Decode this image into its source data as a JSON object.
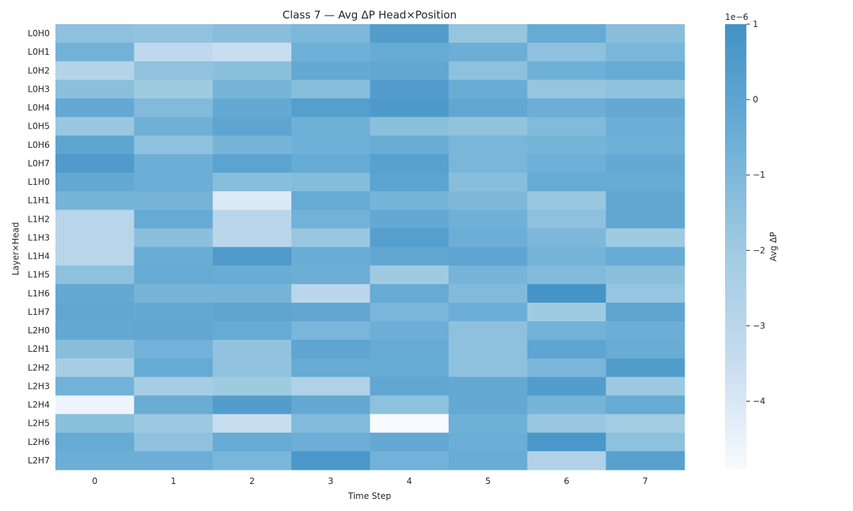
{
  "chart_data": {
    "type": "heatmap",
    "title": "Class 7 — Avg ΔP Head×Position",
    "xlabel": "Time Step",
    "ylabel": "Layer×Head",
    "x_categories": [
      "0",
      "1",
      "2",
      "3",
      "4",
      "5",
      "6",
      "7"
    ],
    "y_categories": [
      "L0H0",
      "L0H1",
      "L0H2",
      "L0H3",
      "L0H4",
      "L0H5",
      "L0H6",
      "L0H7",
      "L1H0",
      "L1H1",
      "L1H2",
      "L1H3",
      "L1H4",
      "L1H5",
      "L1H6",
      "L1H7",
      "L2H0",
      "L2H1",
      "L2H2",
      "L2H3",
      "L2H4",
      "L2H5",
      "L2H6",
      "L2H7"
    ],
    "values_scale": "1e-6",
    "values": [
      [
        -1.5,
        -1.6,
        -1.3,
        -1.0,
        0.4,
        -1.7,
        -0.3,
        -1.3
      ],
      [
        -0.7,
        -3.2,
        -3.5,
        -0.6,
        -0.3,
        -0.5,
        -1.5,
        -0.9
      ],
      [
        -2.8,
        -1.6,
        -1.4,
        -0.2,
        -0.1,
        -1.5,
        -0.6,
        -0.3
      ],
      [
        -1.4,
        -2.0,
        -0.8,
        -1.3,
        0.4,
        -0.4,
        -1.7,
        -1.5
      ],
      [
        -0.2,
        -1.1,
        -0.2,
        0.3,
        0.6,
        -0.1,
        -0.5,
        -0.2
      ],
      [
        -1.8,
        -0.6,
        0.0,
        -0.6,
        -1.4,
        -1.6,
        -1.1,
        -0.5
      ],
      [
        0.0,
        -1.5,
        -0.8,
        -0.6,
        -0.4,
        -0.9,
        -0.8,
        -0.6
      ],
      [
        0.5,
        -0.5,
        0.1,
        -0.3,
        0.2,
        -0.9,
        -0.6,
        -0.2
      ],
      [
        -0.2,
        -0.5,
        -1.3,
        -1.2,
        0.1,
        -1.3,
        -0.3,
        -0.3
      ],
      [
        -0.8,
        -0.8,
        -4.1,
        -0.3,
        -0.8,
        -1.0,
        -1.8,
        -0.1
      ],
      [
        -2.9,
        -0.3,
        -3.0,
        -0.7,
        -0.2,
        -0.6,
        -1.5,
        -0.1
      ],
      [
        -2.9,
        -1.4,
        -3.0,
        -1.8,
        0.3,
        -0.5,
        -1.0,
        -2.0
      ],
      [
        -2.9,
        -0.4,
        0.5,
        -0.4,
        -0.1,
        0.0,
        -0.8,
        -0.3
      ],
      [
        -1.5,
        -0.3,
        -0.4,
        -0.5,
        -2.0,
        -0.8,
        -1.1,
        -1.4
      ],
      [
        -0.2,
        -0.8,
        -0.8,
        -3.0,
        -0.3,
        -1.1,
        0.9,
        -1.7
      ],
      [
        -0.1,
        -0.2,
        0.0,
        -0.1,
        -0.9,
        -0.5,
        -2.0,
        0.0
      ],
      [
        -0.2,
        -0.1,
        -0.3,
        -0.9,
        -0.5,
        -1.5,
        -0.7,
        -0.5
      ],
      [
        -1.3,
        -0.7,
        -1.6,
        0.0,
        -0.3,
        -1.5,
        0.0,
        -0.4
      ],
      [
        -2.3,
        -0.3,
        -1.6,
        -0.3,
        -0.3,
        -1.5,
        -0.9,
        0.4
      ],
      [
        -0.7,
        -2.2,
        -2.0,
        -2.6,
        -0.1,
        -0.2,
        0.4,
        -1.9
      ],
      [
        -4.6,
        -0.4,
        0.4,
        -0.2,
        -1.5,
        -0.2,
        -0.8,
        -0.3
      ],
      [
        -1.4,
        -1.9,
        -3.5,
        -1.1,
        -4.9,
        -0.6,
        -1.8,
        -2.1
      ],
      [
        -0.3,
        -1.5,
        -0.3,
        -0.5,
        -0.2,
        -0.5,
        0.7,
        -1.5
      ],
      [
        -0.5,
        -0.5,
        -0.9,
        0.7,
        -0.7,
        -0.4,
        -2.6,
        0.2
      ]
    ],
    "colorbar": {
      "label": "Avg ΔP",
      "exponent_label": "1e−6",
      "ticks": [
        1,
        0,
        -1,
        -2,
        -3,
        -4
      ],
      "tick_labels": [
        "1",
        "0",
        "−1",
        "−2",
        "−3",
        "−4"
      ],
      "vmin": -4.9,
      "vmax": 1.0
    },
    "colormap": [
      "#f7fbff",
      "#c6dbef",
      "#9ecae1",
      "#6baed6",
      "#4292c6"
    ],
    "grid": false
  }
}
